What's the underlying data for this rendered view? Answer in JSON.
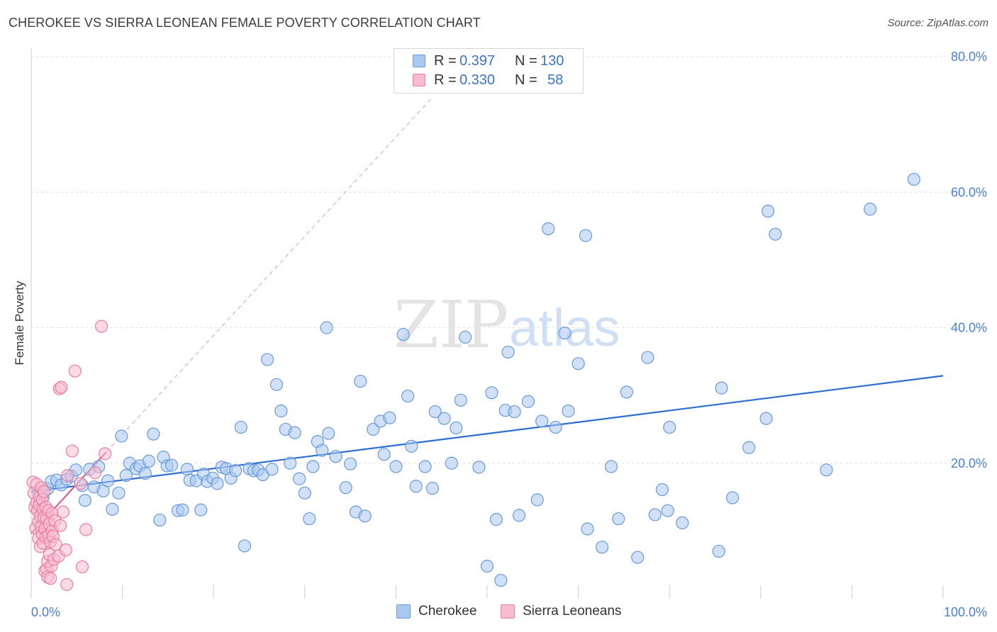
{
  "title": "CHEROKEE VS SIERRA LEONEAN FEMALE POVERTY CORRELATION CHART",
  "source": "Source: ZipAtlas.com",
  "watermark": {
    "zip": "ZIP",
    "atlas": "atlas"
  },
  "legend": {
    "r_label": "R =",
    "n_label": "N =",
    "series": [
      {
        "name": "Cherokee",
        "r": "0.397",
        "n": "130",
        "color": "#aac8f0",
        "stroke": "#6a9ad8"
      },
      {
        "name": "Sierra Leoneans",
        "r": "0.330",
        "n": "58",
        "color": "#f8bcd0",
        "stroke": "#e87ea0"
      }
    ]
  },
  "chart_data": {
    "type": "scatter",
    "title": "CHEROKEE VS SIERRA LEONEAN FEMALE POVERTY CORRELATION CHART",
    "xlabel": "",
    "ylabel": "Female Poverty",
    "xlim": [
      0,
      100
    ],
    "ylim": [
      0,
      80
    ],
    "x_tick_labels": [
      "0.0%",
      "100.0%"
    ],
    "y_ticks": [
      20,
      40,
      60,
      80
    ],
    "y_tick_labels": [
      "20.0%",
      "40.0%",
      "60.0%",
      "80.0%"
    ],
    "grid": true,
    "legend_position": "top-center",
    "series": [
      {
        "name": "Cherokee",
        "color": "#aac8f0",
        "stroke": "#6a9ad8",
        "trend": {
          "x": [
            0,
            100
          ],
          "y": [
            15.8,
            32.9
          ],
          "color": "#2d6fd0"
        },
        "points": [
          [
            0.8,
            15.8
          ],
          [
            1.3,
            15.0
          ],
          [
            1.8,
            16.2
          ],
          [
            2.2,
            17.3
          ],
          [
            2.8,
            17.5
          ],
          [
            3.3,
            16.8
          ],
          [
            3.9,
            17.6
          ],
          [
            4.4,
            18.1
          ],
          [
            4.9,
            19.0
          ],
          [
            5.6,
            16.7
          ],
          [
            5.9,
            14.5
          ],
          [
            6.4,
            19.1
          ],
          [
            6.9,
            16.5
          ],
          [
            7.4,
            19.5
          ],
          [
            7.9,
            15.9
          ],
          [
            8.4,
            17.4
          ],
          [
            8.9,
            13.2
          ],
          [
            9.6,
            15.6
          ],
          [
            9.9,
            24.0
          ],
          [
            10.4,
            18.2
          ],
          [
            10.8,
            20.0
          ],
          [
            11.5,
            19.2
          ],
          [
            11.9,
            19.6
          ],
          [
            12.5,
            18.5
          ],
          [
            12.9,
            20.3
          ],
          [
            13.4,
            24.3
          ],
          [
            14.1,
            11.6
          ],
          [
            14.5,
            20.9
          ],
          [
            14.9,
            19.6
          ],
          [
            15.4,
            19.7
          ],
          [
            16.1,
            13.0
          ],
          [
            16.6,
            13.1
          ],
          [
            17.1,
            19.1
          ],
          [
            17.4,
            17.5
          ],
          [
            18.1,
            17.4
          ],
          [
            18.6,
            13.1
          ],
          [
            18.9,
            18.4
          ],
          [
            19.3,
            17.3
          ],
          [
            19.9,
            17.8
          ],
          [
            20.4,
            17.0
          ],
          [
            20.9,
            19.4
          ],
          [
            21.4,
            19.2
          ],
          [
            21.9,
            17.8
          ],
          [
            22.4,
            18.9
          ],
          [
            23.0,
            25.3
          ],
          [
            23.4,
            7.8
          ],
          [
            23.9,
            19.2
          ],
          [
            24.4,
            18.9
          ],
          [
            24.9,
            19.0
          ],
          [
            25.4,
            18.3
          ],
          [
            25.9,
            35.3
          ],
          [
            26.4,
            19.1
          ],
          [
            26.9,
            31.6
          ],
          [
            27.4,
            27.7
          ],
          [
            27.9,
            25.0
          ],
          [
            28.4,
            20.0
          ],
          [
            28.9,
            24.5
          ],
          [
            29.4,
            17.7
          ],
          [
            30.0,
            15.6
          ],
          [
            30.5,
            11.8
          ],
          [
            30.9,
            19.5
          ],
          [
            31.4,
            23.2
          ],
          [
            31.9,
            21.9
          ],
          [
            32.4,
            40.0
          ],
          [
            32.6,
            24.4
          ],
          [
            33.4,
            21.0
          ],
          [
            34.5,
            16.4
          ],
          [
            35.0,
            19.9
          ],
          [
            35.6,
            12.8
          ],
          [
            36.1,
            32.1
          ],
          [
            36.6,
            12.2
          ],
          [
            37.5,
            25.0
          ],
          [
            38.3,
            26.2
          ],
          [
            38.7,
            21.3
          ],
          [
            39.3,
            26.7
          ],
          [
            40.0,
            19.5
          ],
          [
            40.8,
            39.0
          ],
          [
            41.3,
            29.9
          ],
          [
            41.7,
            22.5
          ],
          [
            42.2,
            16.6
          ],
          [
            43.2,
            19.5
          ],
          [
            44.0,
            16.3
          ],
          [
            44.3,
            27.6
          ],
          [
            45.3,
            26.6
          ],
          [
            46.1,
            20.0
          ],
          [
            46.6,
            25.2
          ],
          [
            47.1,
            29.3
          ],
          [
            47.6,
            38.6
          ],
          [
            49.1,
            19.4
          ],
          [
            50.0,
            4.8
          ],
          [
            50.5,
            30.4
          ],
          [
            51.0,
            11.7
          ],
          [
            51.5,
            2.7
          ],
          [
            52.0,
            27.8
          ],
          [
            52.3,
            36.4
          ],
          [
            53.0,
            27.6
          ],
          [
            53.5,
            12.3
          ],
          [
            54.5,
            29.1
          ],
          [
            55.5,
            14.6
          ],
          [
            56.0,
            26.2
          ],
          [
            56.7,
            54.6
          ],
          [
            57.5,
            25.3
          ],
          [
            58.5,
            39.2
          ],
          [
            58.9,
            27.7
          ],
          [
            60.0,
            34.7
          ],
          [
            60.8,
            53.6
          ],
          [
            61.0,
            10.3
          ],
          [
            62.6,
            7.6
          ],
          [
            63.6,
            19.5
          ],
          [
            64.4,
            11.8
          ],
          [
            65.3,
            30.5
          ],
          [
            66.5,
            6.1
          ],
          [
            67.6,
            35.6
          ],
          [
            68.4,
            12.4
          ],
          [
            69.2,
            16.1
          ],
          [
            69.8,
            13.0
          ],
          [
            70.0,
            25.3
          ],
          [
            71.4,
            11.2
          ],
          [
            75.4,
            7.0
          ],
          [
            75.7,
            31.1
          ],
          [
            76.9,
            14.9
          ],
          [
            78.7,
            22.3
          ],
          [
            80.6,
            26.6
          ],
          [
            80.8,
            57.2
          ],
          [
            81.6,
            53.8
          ],
          [
            87.2,
            19.0
          ],
          [
            92.0,
            57.5
          ],
          [
            96.8,
            61.9
          ]
        ]
      },
      {
        "name": "Sierra Leoneans",
        "color": "#f8bcd0",
        "stroke": "#e87ea0",
        "trend": {
          "x": [
            0,
            8.2
          ],
          "y": [
            9.6,
            21.6
          ],
          "color": "#e05a88",
          "extension": {
            "x": [
              8.2,
              44.0
            ],
            "y": [
              21.6,
              74.0
            ]
          }
        },
        "points": [
          [
            0.2,
            17.2
          ],
          [
            0.3,
            15.6
          ],
          [
            0.4,
            13.5
          ],
          [
            0.5,
            10.4
          ],
          [
            0.6,
            16.9
          ],
          [
            0.6,
            14.2
          ],
          [
            0.7,
            13.0
          ],
          [
            0.8,
            11.4
          ],
          [
            0.8,
            8.9
          ],
          [
            0.9,
            15.0
          ],
          [
            0.9,
            13.8
          ],
          [
            1.0,
            12.2
          ],
          [
            1.0,
            7.7
          ],
          [
            1.1,
            16.4
          ],
          [
            1.1,
            10.6
          ],
          [
            1.2,
            14.6
          ],
          [
            1.2,
            9.5
          ],
          [
            1.3,
            13.2
          ],
          [
            1.3,
            8.2
          ],
          [
            1.4,
            12.0
          ],
          [
            1.4,
            15.8
          ],
          [
            1.5,
            10.3
          ],
          [
            1.5,
            4.1
          ],
          [
            1.6,
            9.1
          ],
          [
            1.6,
            13.5
          ],
          [
            1.7,
            4.4
          ],
          [
            1.7,
            11.8
          ],
          [
            1.8,
            5.5
          ],
          [
            1.8,
            3.2
          ],
          [
            1.9,
            9.4
          ],
          [
            1.9,
            13.0
          ],
          [
            2.0,
            6.5
          ],
          [
            2.0,
            11.0
          ],
          [
            2.1,
            8.4
          ],
          [
            2.1,
            3.0
          ],
          [
            2.2,
            4.8
          ],
          [
            2.3,
            10.0
          ],
          [
            2.3,
            12.6
          ],
          [
            2.4,
            9.2
          ],
          [
            2.5,
            5.8
          ],
          [
            2.6,
            11.5
          ],
          [
            2.7,
            8.0
          ],
          [
            3.0,
            6.3
          ],
          [
            3.1,
            31.0
          ],
          [
            3.2,
            10.8
          ],
          [
            3.3,
            31.2
          ],
          [
            3.5,
            12.8
          ],
          [
            3.8,
            7.2
          ],
          [
            3.9,
            2.1
          ],
          [
            4.0,
            18.2
          ],
          [
            4.5,
            21.8
          ],
          [
            4.8,
            33.6
          ],
          [
            5.4,
            17.0
          ],
          [
            5.6,
            4.7
          ],
          [
            6.0,
            10.2
          ],
          [
            7.0,
            18.6
          ],
          [
            7.7,
            40.2
          ],
          [
            8.1,
            21.4
          ]
        ]
      }
    ]
  }
}
